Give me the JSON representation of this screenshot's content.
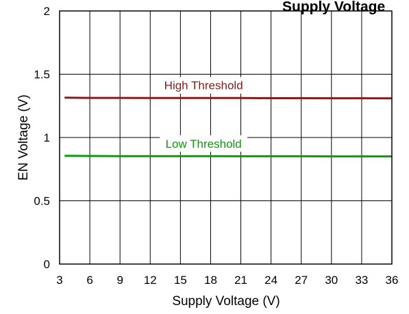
{
  "chart_data": {
    "type": "line",
    "title": "Supply Voltage",
    "xlabel": "Supply Voltage (V)",
    "ylabel": "EN Voltage (V)",
    "xlim": [
      3,
      36
    ],
    "ylim": [
      0,
      2
    ],
    "xticks": [
      3,
      6,
      9,
      12,
      15,
      18,
      21,
      24,
      27,
      30,
      33,
      36
    ],
    "yticks": [
      0,
      0.5,
      1,
      1.5,
      2
    ],
    "ytick_labels": [
      "0",
      "0.5",
      "1",
      "1.5",
      "2"
    ],
    "grid": true,
    "series": [
      {
        "name": "High Threshold",
        "color": "#8b1a1a",
        "x": [
          3.5,
          6,
          9,
          12,
          15,
          18,
          21,
          24,
          27,
          30,
          33,
          36
        ],
        "y": [
          1.315,
          1.313,
          1.313,
          1.312,
          1.312,
          1.312,
          1.312,
          1.311,
          1.311,
          1.31,
          1.31,
          1.309
        ]
      },
      {
        "name": "Low Threshold",
        "color": "#0a9a0a",
        "x": [
          3.5,
          6,
          9,
          12,
          15,
          18,
          21,
          24,
          27,
          30,
          33,
          36
        ],
        "y": [
          0.855,
          0.854,
          0.853,
          0.853,
          0.853,
          0.853,
          0.852,
          0.852,
          0.852,
          0.851,
          0.851,
          0.851
        ]
      }
    ]
  }
}
